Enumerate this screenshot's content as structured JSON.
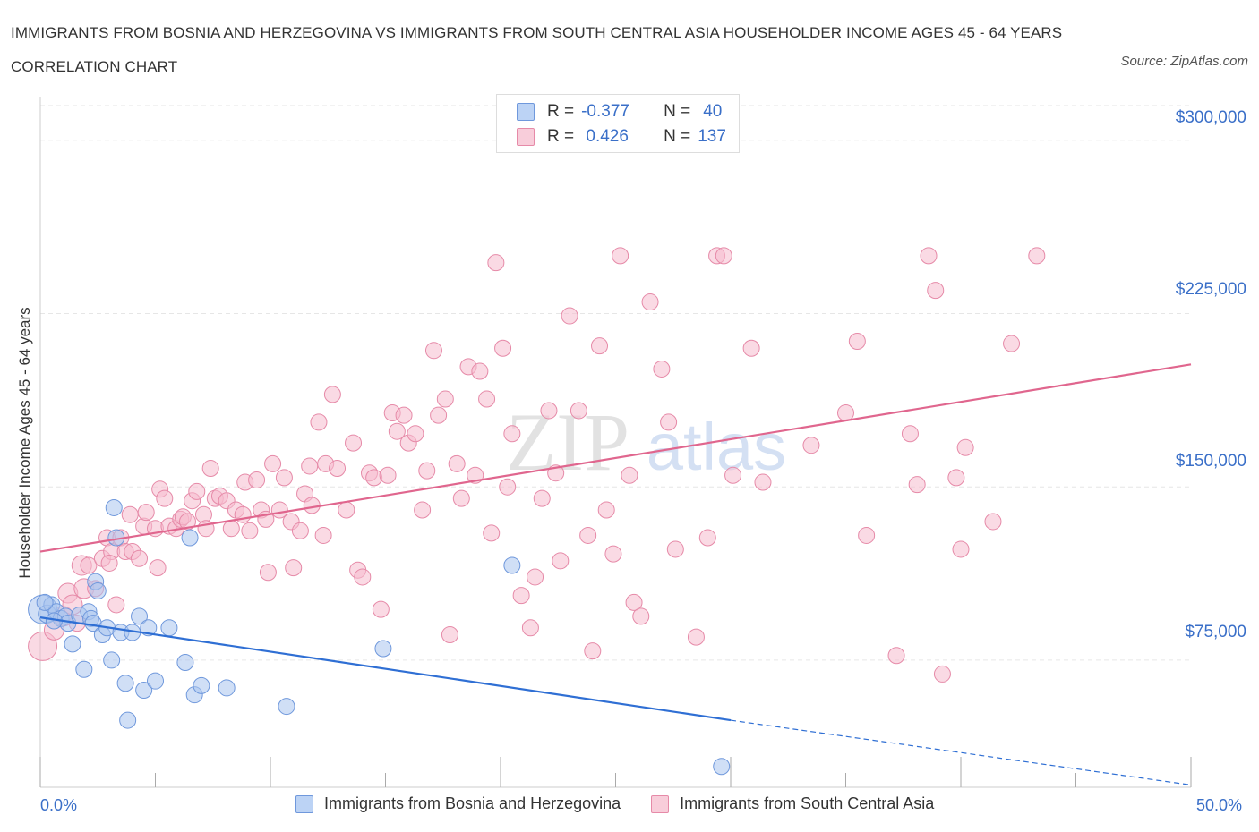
{
  "header": {
    "title": "IMMIGRANTS FROM BOSNIA AND HERZEGOVINA VS IMMIGRANTS FROM SOUTH CENTRAL ASIA HOUSEHOLDER INCOME AGES 45 - 64 YEARS CORRELATION CHART",
    "source": "Source: ZipAtlas.com"
  },
  "legend": {
    "rows": [
      {
        "r_label": "R =",
        "r_value": "-0.377",
        "n_label": "N =",
        "n_value": "40"
      },
      {
        "r_label": "R =",
        "r_value": " 0.426",
        "n_label": "N =",
        "n_value": "137"
      }
    ]
  },
  "colors": {
    "blue_fill": "#a9c4ee",
    "blue_stroke": "#6f98dc",
    "blue_line": "#2f6fd4",
    "pink_fill": "#f5bccd",
    "pink_stroke": "#e68aa8",
    "pink_line": "#e0668e",
    "tick_text": "#3a6fc8"
  },
  "watermark": {
    "left": "ZIP",
    "right": "atlas"
  },
  "chart_data": {
    "type": "scatter",
    "title": "IMMIGRANTS FROM BOSNIA AND HERZEGOVINA VS IMMIGRANTS FROM SOUTH CENTRAL ASIA HOUSEHOLDER INCOME AGES 45 - 64 YEARS CORRELATION CHART",
    "xlabel": "",
    "ylabel": "Householder Income Ages 45 - 64 years",
    "xlim": [
      0,
      50
    ],
    "ylim": [
      20000,
      315000
    ],
    "x_tick_labels": [
      "0.0%",
      "50.0%"
    ],
    "y_ticks": [
      75000,
      150000,
      225000,
      300000
    ],
    "y_tick_labels": [
      "$75,000",
      "$150,000",
      "$225,000",
      "$300,000"
    ],
    "grid": true,
    "legend_position": "top-center",
    "series": [
      {
        "name": "Immigrants from Bosnia and Herzegovina",
        "r": -0.377,
        "n": 40,
        "trend": {
          "x0": 0,
          "y0": 93500,
          "x1": 30,
          "y1": 49000,
          "dash_to_x": 50,
          "dash_to_y": 21000
        },
        "points": [
          [
            0.1,
            97000,
            16
          ],
          [
            0.3,
            95000,
            10
          ],
          [
            0.5,
            99000,
            9
          ],
          [
            0.7,
            96000,
            9
          ],
          [
            0.9,
            93000,
            9
          ],
          [
            1.1,
            94000,
            9
          ],
          [
            1.2,
            91000,
            9
          ],
          [
            1.4,
            82000,
            9
          ],
          [
            1.7,
            94500,
            9
          ],
          [
            1.9,
            71000,
            9
          ],
          [
            2.1,
            96000,
            9
          ],
          [
            2.2,
            93000,
            9
          ],
          [
            2.3,
            91000,
            9
          ],
          [
            2.4,
            109000,
            9
          ],
          [
            2.5,
            105000,
            9
          ],
          [
            2.7,
            86000,
            9
          ],
          [
            2.9,
            89000,
            9
          ],
          [
            3.1,
            75000,
            9
          ],
          [
            3.2,
            141000,
            9
          ],
          [
            3.3,
            128000,
            9
          ],
          [
            3.5,
            87000,
            9
          ],
          [
            3.7,
            65000,
            9
          ],
          [
            3.8,
            49000,
            9
          ],
          [
            4.0,
            87000,
            9
          ],
          [
            4.3,
            94000,
            9
          ],
          [
            4.5,
            62000,
            9
          ],
          [
            4.7,
            89000,
            9
          ],
          [
            5.0,
            66000,
            9
          ],
          [
            5.6,
            89000,
            9
          ],
          [
            6.3,
            74000,
            9
          ],
          [
            6.5,
            128000,
            9
          ],
          [
            6.7,
            60000,
            9
          ],
          [
            7.0,
            64000,
            9
          ],
          [
            8.1,
            63000,
            9
          ],
          [
            10.7,
            55000,
            9
          ],
          [
            14.9,
            80000,
            9
          ],
          [
            20.5,
            116000,
            9
          ],
          [
            29.6,
            29000,
            9
          ],
          [
            0.2,
            100000,
            9
          ],
          [
            0.6,
            92000,
            9
          ]
        ]
      },
      {
        "name": "Immigrants from South Central Asia",
        "r": 0.426,
        "n": 137,
        "trend": {
          "x0": 0,
          "y0": 122000,
          "x1": 50,
          "y1": 203000
        },
        "points": [
          [
            0.1,
            81000,
            16
          ],
          [
            0.6,
            88000,
            11
          ],
          [
            1.0,
            94000,
            11
          ],
          [
            1.2,
            104000,
            11
          ],
          [
            1.4,
            99000,
            11
          ],
          [
            1.6,
            91000,
            9
          ],
          [
            1.8,
            116000,
            11
          ],
          [
            1.9,
            106000,
            11
          ],
          [
            2.1,
            116000,
            9
          ],
          [
            2.4,
            106000,
            9
          ],
          [
            2.7,
            119000,
            9
          ],
          [
            2.9,
            128000,
            9
          ],
          [
            3.1,
            122000,
            9
          ],
          [
            3.3,
            99000,
            9
          ],
          [
            3.5,
            128000,
            9
          ],
          [
            3.7,
            122000,
            9
          ],
          [
            3.9,
            138000,
            9
          ],
          [
            4.0,
            122000,
            9
          ],
          [
            4.3,
            119000,
            9
          ],
          [
            4.5,
            133000,
            9
          ],
          [
            4.6,
            139000,
            9
          ],
          [
            5.0,
            132000,
            9
          ],
          [
            5.1,
            115000,
            9
          ],
          [
            5.2,
            149000,
            9
          ],
          [
            5.4,
            145000,
            9
          ],
          [
            5.6,
            133000,
            9
          ],
          [
            5.9,
            132000,
            9
          ],
          [
            6.1,
            136000,
            9
          ],
          [
            6.2,
            137000,
            9
          ],
          [
            6.4,
            135000,
            9
          ],
          [
            6.6,
            144000,
            9
          ],
          [
            6.8,
            148000,
            9
          ],
          [
            7.1,
            138000,
            9
          ],
          [
            7.2,
            132000,
            9
          ],
          [
            7.4,
            158000,
            9
          ],
          [
            7.6,
            145000,
            9
          ],
          [
            7.8,
            146000,
            9
          ],
          [
            8.1,
            144000,
            9
          ],
          [
            8.3,
            132000,
            9
          ],
          [
            8.5,
            140000,
            9
          ],
          [
            8.8,
            138000,
            9
          ],
          [
            8.9,
            152000,
            9
          ],
          [
            9.1,
            131000,
            9
          ],
          [
            9.4,
            153000,
            9
          ],
          [
            9.6,
            140000,
            9
          ],
          [
            9.8,
            136000,
            9
          ],
          [
            9.9,
            113000,
            9
          ],
          [
            10.1,
            160000,
            9
          ],
          [
            10.4,
            140000,
            9
          ],
          [
            10.6,
            154000,
            9
          ],
          [
            10.9,
            135000,
            9
          ],
          [
            11.0,
            115000,
            9
          ],
          [
            11.3,
            131000,
            9
          ],
          [
            11.5,
            147000,
            9
          ],
          [
            11.7,
            159000,
            9
          ],
          [
            11.8,
            142000,
            9
          ],
          [
            12.1,
            178000,
            9
          ],
          [
            12.3,
            129000,
            9
          ],
          [
            12.4,
            160000,
            9
          ],
          [
            12.7,
            190000,
            9
          ],
          [
            12.9,
            158000,
            9
          ],
          [
            13.3,
            140000,
            9
          ],
          [
            13.6,
            169000,
            9
          ],
          [
            13.8,
            114000,
            9
          ],
          [
            14.0,
            111000,
            9
          ],
          [
            14.3,
            156000,
            9
          ],
          [
            14.5,
            154000,
            9
          ],
          [
            14.8,
            97000,
            9
          ],
          [
            15.1,
            155000,
            9
          ],
          [
            15.3,
            182000,
            9
          ],
          [
            15.5,
            174000,
            9
          ],
          [
            15.8,
            181000,
            9
          ],
          [
            16.0,
            169000,
            9
          ],
          [
            16.3,
            173000,
            9
          ],
          [
            16.6,
            140000,
            9
          ],
          [
            16.8,
            157000,
            9
          ],
          [
            17.1,
            209000,
            9
          ],
          [
            17.3,
            181000,
            9
          ],
          [
            17.6,
            188000,
            9
          ],
          [
            17.8,
            86000,
            9
          ],
          [
            18.1,
            160000,
            9
          ],
          [
            18.3,
            145000,
            9
          ],
          [
            18.6,
            202000,
            9
          ],
          [
            18.9,
            155000,
            9
          ],
          [
            19.1,
            200000,
            9
          ],
          [
            19.4,
            188000,
            9
          ],
          [
            19.6,
            130000,
            9
          ],
          [
            19.8,
            247000,
            9
          ],
          [
            20.1,
            210000,
            9
          ],
          [
            20.3,
            150000,
            9
          ],
          [
            20.5,
            173000,
            9
          ],
          [
            20.9,
            103000,
            9
          ],
          [
            21.3,
            89000,
            9
          ],
          [
            21.5,
            111000,
            9
          ],
          [
            21.8,
            145000,
            9
          ],
          [
            22.1,
            183000,
            9
          ],
          [
            22.4,
            156000,
            9
          ],
          [
            22.6,
            118000,
            9
          ],
          [
            23.0,
            224000,
            9
          ],
          [
            23.4,
            183000,
            9
          ],
          [
            23.8,
            129000,
            9
          ],
          [
            24.0,
            79000,
            9
          ],
          [
            24.3,
            211000,
            9
          ],
          [
            24.6,
            140000,
            9
          ],
          [
            24.9,
            121000,
            9
          ],
          [
            25.2,
            250000,
            9
          ],
          [
            25.6,
            155000,
            9
          ],
          [
            25.8,
            100000,
            9
          ],
          [
            26.1,
            94000,
            9
          ],
          [
            26.5,
            230000,
            9
          ],
          [
            27.0,
            201000,
            9
          ],
          [
            27.3,
            178000,
            9
          ],
          [
            27.6,
            123000,
            9
          ],
          [
            28.5,
            85000,
            9
          ],
          [
            29.0,
            128000,
            9
          ],
          [
            29.4,
            250000,
            9
          ],
          [
            29.7,
            250000,
            9
          ],
          [
            30.1,
            155000,
            9
          ],
          [
            30.9,
            210000,
            9
          ],
          [
            31.4,
            152000,
            9
          ],
          [
            33.5,
            168000,
            9
          ],
          [
            35.0,
            182000,
            9
          ],
          [
            35.5,
            213000,
            9
          ],
          [
            35.9,
            129000,
            9
          ],
          [
            37.2,
            77000,
            9
          ],
          [
            37.8,
            173000,
            9
          ],
          [
            38.1,
            151000,
            9
          ],
          [
            38.6,
            250000,
            9
          ],
          [
            38.9,
            235000,
            9
          ],
          [
            39.2,
            69000,
            9
          ],
          [
            39.8,
            154000,
            9
          ],
          [
            40.0,
            123000,
            9
          ],
          [
            40.2,
            167000,
            9
          ],
          [
            41.4,
            135000,
            9
          ],
          [
            42.2,
            212000,
            9
          ],
          [
            43.3,
            250000,
            9
          ],
          [
            3.0,
            117000,
            9
          ]
        ]
      }
    ]
  },
  "bottom_legend": {
    "series_a": "Immigrants from Bosnia and Herzegovina",
    "series_b": "Immigrants from South Central Asia"
  }
}
